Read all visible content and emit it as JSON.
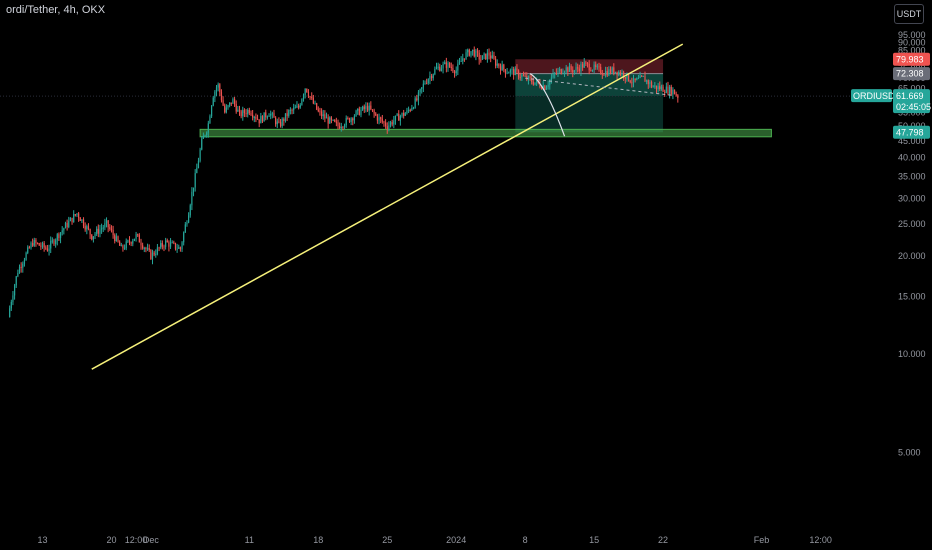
{
  "header": {
    "title": "ordi/Tether, 4h, OKX",
    "currency_button": "USDT"
  },
  "colors": {
    "background": "#000000",
    "up": "#26a69a",
    "down": "#ef5350",
    "trendline": "#f5f07a",
    "zone_green": "#4caf50",
    "stop_zone": "#5a1a22",
    "target_zone": "#0e4a40",
    "grey_tag": "#6a6d78"
  },
  "chart_data": {
    "type": "candlestick",
    "title": "ordi/Tether, 4h, OKX",
    "ylim": [
      3,
      99
    ],
    "y_ticks": [
      5,
      10,
      15,
      20,
      25,
      30,
      35,
      40,
      45,
      50,
      55,
      60,
      65,
      70,
      75,
      80,
      85,
      90,
      95
    ],
    "x_ticks": [
      {
        "label": "13",
        "t": 0
      },
      {
        "label": "20",
        "t": 7
      },
      {
        "label": "12:00",
        "t": 9.5
      },
      {
        "label": "Dec",
        "t": 11
      },
      {
        "label": "11",
        "t": 21
      },
      {
        "label": "18",
        "t": 28
      },
      {
        "label": "25",
        "t": 35
      },
      {
        "label": "2024",
        "t": 42
      },
      {
        "label": "8",
        "t": 49
      },
      {
        "label": "15",
        "t": 56
      },
      {
        "label": "22",
        "t": 63
      },
      {
        "label": "Feb",
        "t": 73
      },
      {
        "label": "12:00",
        "t": 79
      }
    ],
    "price_path": [
      [
        -3.5,
        13
      ],
      [
        -2.5,
        18
      ],
      [
        -1,
        22
      ],
      [
        0.5,
        21
      ],
      [
        2,
        24
      ],
      [
        3.5,
        27
      ],
      [
        5,
        23
      ],
      [
        6.5,
        25
      ],
      [
        8,
        21
      ],
      [
        9.5,
        23
      ],
      [
        11,
        20
      ],
      [
        12.5,
        22
      ],
      [
        14,
        21
      ],
      [
        14.8,
        27
      ],
      [
        15.6,
        36
      ],
      [
        16.2,
        45
      ],
      [
        16.8,
        50
      ],
      [
        17.3,
        62
      ],
      [
        17.8,
        67
      ],
      [
        18.5,
        55
      ],
      [
        19.3,
        60
      ],
      [
        20,
        54
      ],
      [
        21,
        56
      ],
      [
        22,
        52
      ],
      [
        23,
        55
      ],
      [
        24,
        50
      ],
      [
        25,
        55
      ],
      [
        26,
        57
      ],
      [
        26.7,
        66
      ],
      [
        27.3,
        60
      ],
      [
        28,
        55
      ],
      [
        29,
        52
      ],
      [
        30,
        50
      ],
      [
        31,
        52
      ],
      [
        32,
        55
      ],
      [
        33,
        57
      ],
      [
        34,
        53
      ],
      [
        35,
        50
      ],
      [
        36,
        53
      ],
      [
        37,
        55
      ],
      [
        38,
        60
      ],
      [
        38.8,
        68
      ],
      [
        39.5,
        72
      ],
      [
        40,
        75
      ],
      [
        41,
        77
      ],
      [
        42,
        74
      ],
      [
        42.8,
        82
      ],
      [
        43.6,
        85
      ],
      [
        44.5,
        80
      ],
      [
        45.3,
        83
      ],
      [
        46,
        78
      ],
      [
        47,
        74
      ],
      [
        48,
        73
      ],
      [
        49,
        70
      ],
      [
        50,
        68
      ],
      [
        51,
        66
      ],
      [
        52,
        72
      ],
      [
        53,
        75
      ],
      [
        54,
        74
      ],
      [
        55,
        77
      ],
      [
        56,
        75
      ],
      [
        57,
        73
      ],
      [
        58,
        74
      ],
      [
        59,
        72
      ],
      [
        60,
        68
      ],
      [
        61,
        70
      ],
      [
        62,
        66
      ],
      [
        63,
        65
      ],
      [
        64,
        64
      ],
      [
        64.5,
        61.669
      ]
    ],
    "trendline": {
      "from": [
        5,
        9
      ],
      "to": [
        65,
        89
      ]
    },
    "support_zone": {
      "from": 16,
      "to": 74,
      "bottom": 46.3,
      "top": 48.8
    },
    "position": {
      "from": 48,
      "to": 63,
      "entry": 72.308,
      "stop": 79.983,
      "target": 47.798,
      "entry_label": "72.308",
      "stop_label": "79.983",
      "target_label": "47.798"
    },
    "projection": {
      "x": [
        49.5,
        51,
        53
      ],
      "y": [
        72.3,
        68,
        46.5
      ]
    },
    "dashed_projection": {
      "from": [
        49,
        70
      ],
      "to": [
        64,
        62
      ]
    },
    "last_price": {
      "value": 61.669,
      "symbol": "ORDIUSDT",
      "price_label": "61.669",
      "countdown": "02:45:05"
    }
  }
}
